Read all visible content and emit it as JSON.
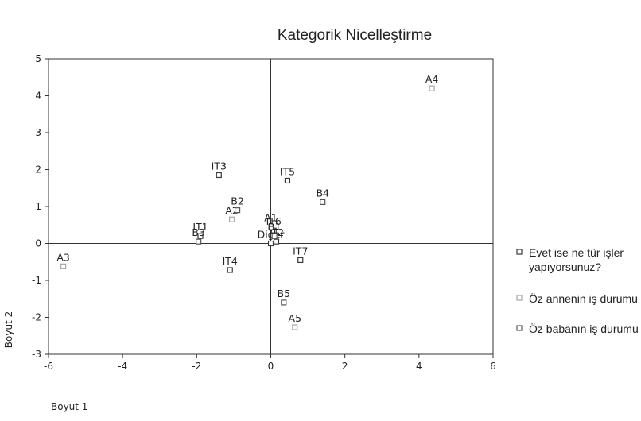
{
  "chart_data": {
    "type": "scatter",
    "title": "Kategorik Nicelleştirme",
    "xlabel": "Boyut 1",
    "ylabel": "Boyut 2",
    "xlim": [
      -6,
      6
    ],
    "ylim": [
      -3,
      5
    ],
    "xticks": [
      "-6",
      "-4",
      "-2",
      "0",
      "2",
      "4",
      "6"
    ],
    "yticks": [
      "-3",
      "-2",
      "-1",
      "0",
      "1",
      "2",
      "3",
      "4",
      "5"
    ],
    "reference_lines": {
      "x": 0,
      "y": 0
    },
    "grid": false,
    "legend_position": "right",
    "series": [
      {
        "name": "Evet ise ne tür işler yapıyorsunuz?",
        "legend_lines": [
          "Evet ise ne tür işler",
          "yapıyorsunuz?"
        ],
        "color": "#3a3a3a",
        "points": [
          {
            "label": "IT3",
            "x": -1.4,
            "y": 1.85
          },
          {
            "label": "IT1",
            "x": -1.9,
            "y": 0.2
          },
          {
            "label": "IT4",
            "x": -1.1,
            "y": -0.72
          },
          {
            "label": "IT5",
            "x": 0.45,
            "y": 1.7
          },
          {
            "label": "IT6",
            "x": 0.08,
            "y": 0.35
          },
          {
            "label": "IT7",
            "x": 0.8,
            "y": -0.45
          },
          {
            "label": "Diğer",
            "x": 0.0,
            "y": 0.0
          },
          {
            "label": "IT2",
            "x": 0.15,
            "y": 0.05
          }
        ]
      },
      {
        "name": "Öz annenin iş durumu",
        "legend_lines": [
          "Öz annenin iş durumu"
        ],
        "color": "#a6a6a6",
        "points": [
          {
            "label": "A4",
            "x": 4.35,
            "y": 4.2
          },
          {
            "label": "A2",
            "x": -1.05,
            "y": 0.65
          },
          {
            "label": "A1",
            "x": 0.0,
            "y": 0.45
          },
          {
            "label": "A3",
            "x": -5.6,
            "y": -0.62
          },
          {
            "label": "A5",
            "x": 0.65,
            "y": -2.27
          }
        ]
      },
      {
        "name": "Öz babanın iş durumu",
        "legend_lines": [
          "Öz babanın iş durumu"
        ],
        "color": "#555555",
        "points": [
          {
            "label": "B2",
            "x": -0.9,
            "y": 0.9
          },
          {
            "label": "B4",
            "x": 1.4,
            "y": 1.12
          },
          {
            "label": "B3",
            "x": -1.95,
            "y": 0.05
          },
          {
            "label": "B1",
            "x": 0.1,
            "y": 0.2
          },
          {
            "label": "B5",
            "x": 0.35,
            "y": -1.6
          }
        ]
      }
    ]
  }
}
